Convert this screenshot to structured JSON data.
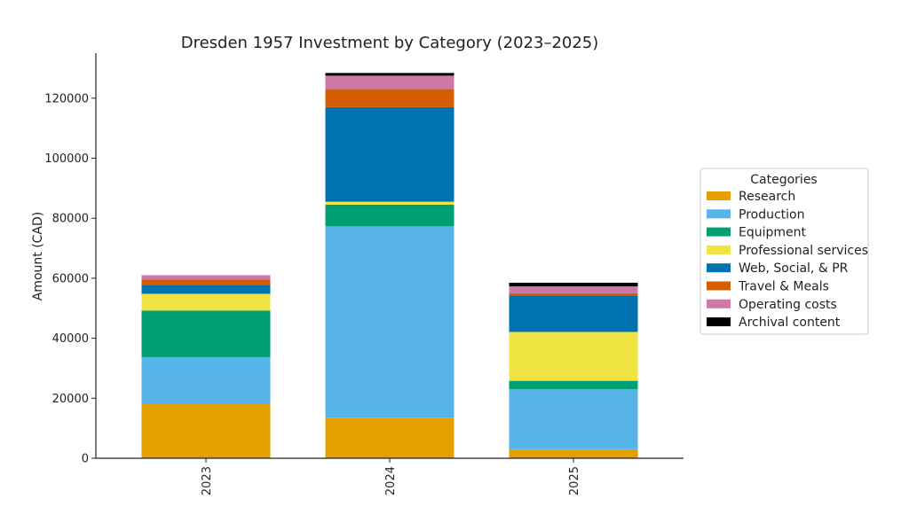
{
  "chart_data": {
    "type": "bar",
    "stacked": true,
    "title": "Dresden 1957 Investment by Category (2023–2025)",
    "xlabel": "",
    "ylabel": "Amount (CAD)",
    "ylim": [
      0,
      135000
    ],
    "yticks": [
      0,
      20000,
      40000,
      60000,
      80000,
      100000,
      120000
    ],
    "ytick_labels": [
      "0",
      "20000",
      "40000",
      "60000",
      "80000",
      "100000",
      "120000"
    ],
    "categories": [
      "2023",
      "2024",
      "2025"
    ],
    "legend_title": "Categories",
    "legend_position": "right",
    "grid": false,
    "series": [
      {
        "name": "Research",
        "color": "#E69F00",
        "values": [
          18000,
          13500,
          3000
        ]
      },
      {
        "name": "Production",
        "color": "#56B4E9",
        "values": [
          15700,
          63800,
          20000
        ]
      },
      {
        "name": "Equipment",
        "color": "#009E73",
        "values": [
          15500,
          7200,
          2800
        ]
      },
      {
        "name": "Professional services",
        "color": "#F0E442",
        "values": [
          5600,
          1000,
          16300
        ]
      },
      {
        "name": "Web, Social, & PR",
        "color": "#0072B2",
        "values": [
          3000,
          31500,
          12200
        ]
      },
      {
        "name": "Travel & Meals",
        "color": "#D55E00",
        "values": [
          1800,
          6000,
          700
        ]
      },
      {
        "name": "Operating costs",
        "color": "#CC79A7",
        "values": [
          1400,
          4500,
          2300
        ]
      },
      {
        "name": "Archival content",
        "color": "#000000",
        "values": [
          0,
          900,
          1200
        ]
      }
    ]
  }
}
